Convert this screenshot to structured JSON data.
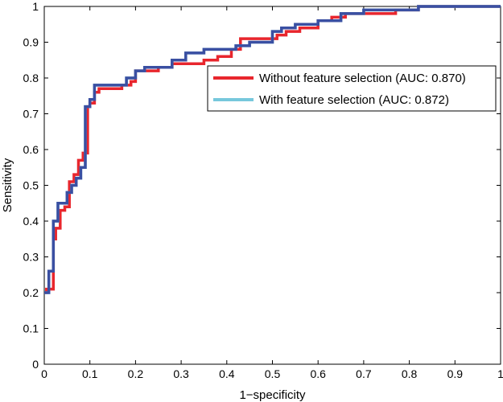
{
  "chart_data": {
    "type": "line",
    "title": "",
    "xlabel": "1−specificity",
    "ylabel": "Sensitivity",
    "xlim": [
      0,
      1
    ],
    "ylim": [
      0,
      1
    ],
    "xticks": [
      "0",
      "0.1",
      "0.2",
      "0.3",
      "0.4",
      "0.5",
      "0.6",
      "0.7",
      "0.8",
      "0.9",
      "1"
    ],
    "yticks": [
      "0",
      "0.1",
      "0.2",
      "0.3",
      "0.4",
      "0.5",
      "0.6",
      "0.7",
      "0.8",
      "0.9",
      "1"
    ],
    "grid": false,
    "legend_position": "upper-right",
    "series": [
      {
        "name": "Without feature selection (AUC: 0.870)",
        "color": "#e8262d",
        "step": true,
        "x": [
          0,
          0.005,
          0.02,
          0.025,
          0.035,
          0.045,
          0.055,
          0.065,
          0.075,
          0.085,
          0.095,
          0.1,
          0.11,
          0.12,
          0.13,
          0.15,
          0.17,
          0.19,
          0.2,
          0.22,
          0.25,
          0.28,
          0.31,
          0.35,
          0.38,
          0.41,
          0.43,
          0.48,
          0.51,
          0.53,
          0.56,
          0.6,
          0.63,
          0.66,
          0.7,
          0.73,
          0.77,
          0.82,
          1
        ],
        "y": [
          0.2,
          0.21,
          0.35,
          0.38,
          0.43,
          0.44,
          0.51,
          0.53,
          0.57,
          0.59,
          0.72,
          0.73,
          0.76,
          0.77,
          0.77,
          0.77,
          0.78,
          0.79,
          0.82,
          0.82,
          0.83,
          0.84,
          0.84,
          0.85,
          0.86,
          0.88,
          0.91,
          0.91,
          0.92,
          0.93,
          0.94,
          0.96,
          0.97,
          0.98,
          0.98,
          0.98,
          0.99,
          1,
          1
        ]
      },
      {
        "name": "With feature selection (AUC: 0.872)",
        "color": "#77c8dc",
        "step": true,
        "x": [
          0,
          0.01,
          0.02,
          0.03,
          0.04,
          0.05,
          0.06,
          0.07,
          0.08,
          0.09,
          0.1,
          0.11,
          0.13,
          0.15,
          0.18,
          0.2,
          0.22,
          0.25,
          0.28,
          0.31,
          0.35,
          0.38,
          0.42,
          0.45,
          0.5,
          0.52,
          0.55,
          0.6,
          0.65,
          0.7,
          0.75,
          0.8,
          0.82,
          1
        ],
        "y": [
          0.2,
          0.26,
          0.4,
          0.45,
          0.45,
          0.48,
          0.5,
          0.52,
          0.55,
          0.72,
          0.74,
          0.78,
          0.78,
          0.78,
          0.8,
          0.82,
          0.83,
          0.83,
          0.85,
          0.87,
          0.88,
          0.88,
          0.89,
          0.9,
          0.93,
          0.94,
          0.95,
          0.96,
          0.98,
          0.99,
          0.99,
          0.99,
          1,
          1
        ]
      },
      {
        "name": "",
        "color": "#3a4fa2",
        "step": true,
        "x": [
          0,
          0.01,
          0.02,
          0.03,
          0.04,
          0.05,
          0.06,
          0.07,
          0.08,
          0.09,
          0.1,
          0.11,
          0.13,
          0.15,
          0.18,
          0.2,
          0.22,
          0.25,
          0.28,
          0.31,
          0.35,
          0.38,
          0.42,
          0.45,
          0.5,
          0.52,
          0.55,
          0.6,
          0.65,
          0.7,
          0.75,
          0.8,
          0.82,
          1
        ],
        "y": [
          0.2,
          0.26,
          0.4,
          0.45,
          0.45,
          0.48,
          0.5,
          0.52,
          0.55,
          0.72,
          0.74,
          0.78,
          0.78,
          0.78,
          0.8,
          0.82,
          0.83,
          0.83,
          0.85,
          0.87,
          0.88,
          0.88,
          0.89,
          0.9,
          0.93,
          0.94,
          0.95,
          0.96,
          0.98,
          0.99,
          0.99,
          0.99,
          1,
          1
        ]
      }
    ],
    "legend_entries": [
      {
        "label": "Without feature selection (AUC: 0.870)",
        "color": "#e8262d"
      },
      {
        "label": "With feature selection (AUC: 0.872)",
        "color": "#77c8dc"
      }
    ]
  }
}
